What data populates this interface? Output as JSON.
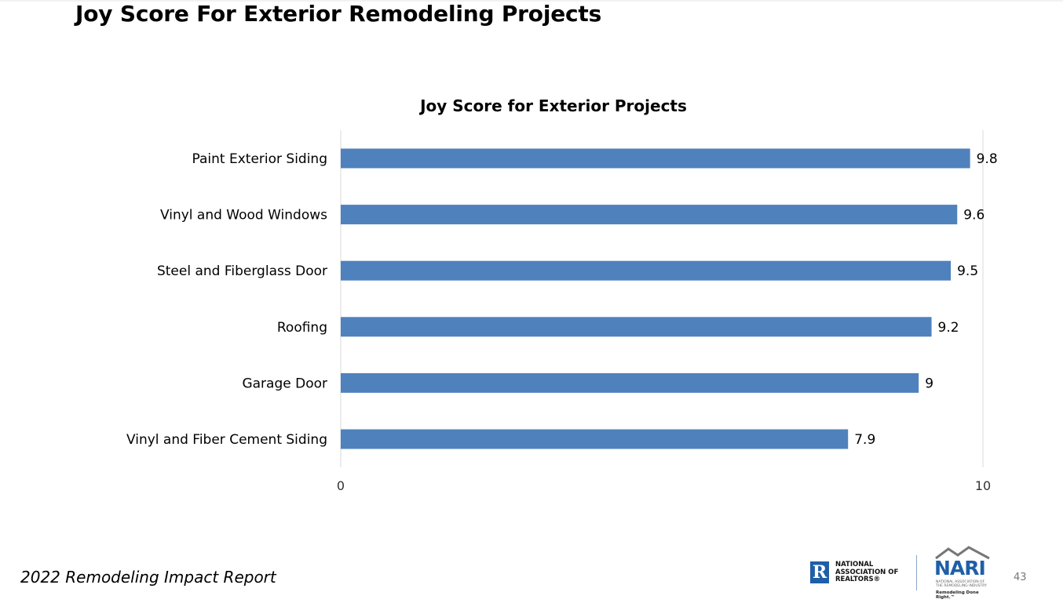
{
  "slide": {
    "title": "Joy Score For Exterior Remodeling Projects",
    "footer": "2022 Remodeling Impact Report",
    "page_number": "43"
  },
  "logos": {
    "realtor": {
      "mark": "R",
      "lines": [
        "NATIONAL",
        "ASSOCIATION OF",
        "REALTORS®"
      ]
    },
    "nari": {
      "wordmark": "NARI",
      "sub_lines": [
        "NATIONAL ASSOCIATION OF",
        "THE REMODELING INDUSTRY"
      ],
      "tagline": "Remodeling Done Right.™"
    }
  },
  "chart_data": {
    "type": "bar",
    "orientation": "horizontal",
    "title": "Joy Score for Exterior Projects",
    "categories": [
      "Paint Exterior Siding",
      "Vinyl and Wood Windows",
      "Steel and Fiberglass Door",
      "Roofing",
      "Garage Door",
      "Vinyl and Fiber Cement Siding"
    ],
    "values": [
      9.8,
      9.6,
      9.5,
      9.2,
      9,
      7.9
    ],
    "data_labels": [
      "9.8",
      "9.6",
      "9.5",
      "9.2",
      "9",
      "7.9"
    ],
    "xlim": [
      0,
      10
    ],
    "x_ticks": [
      "0",
      "10"
    ],
    "grid": true,
    "bar_color": "#4f81bd",
    "gridline_color": "#d9d9d9"
  }
}
